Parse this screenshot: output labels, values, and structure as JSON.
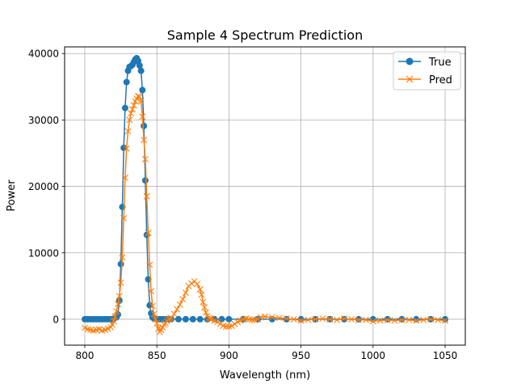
{
  "chart_data": {
    "type": "line",
    "title": "Sample 4 Spectrum Prediction",
    "xlabel": "Wavelength (nm)",
    "ylabel": "Power",
    "xlim": [
      786,
      1064
    ],
    "ylim": [
      -3900,
      41000
    ],
    "xticks": [
      800,
      850,
      900,
      950,
      1000,
      1050
    ],
    "yticks": [
      0,
      10000,
      20000,
      30000,
      40000
    ],
    "grid": true,
    "legend_position": "top-right",
    "series": [
      {
        "name": "True",
        "color": "#1f77b4",
        "marker": "circle",
        "x": [
          800,
          802,
          804,
          806,
          808,
          810,
          812,
          814,
          816,
          818,
          820,
          822,
          823,
          824,
          825,
          826,
          827,
          828,
          829,
          830,
          831,
          832,
          833,
          834,
          835,
          836,
          837,
          838,
          839,
          840,
          841,
          842,
          843,
          844,
          845,
          846,
          847,
          848,
          849,
          850,
          851,
          852,
          854,
          856,
          858,
          860,
          865,
          870,
          875,
          880,
          885,
          890,
          895,
          900,
          910,
          920,
          930,
          940,
          950,
          960,
          970,
          980,
          990,
          1000,
          1010,
          1020,
          1030,
          1040,
          1050
        ],
        "y": [
          0,
          0,
          0,
          0,
          0,
          0,
          0,
          0,
          0,
          0,
          50,
          300,
          700,
          2800,
          8300,
          16900,
          25800,
          31800,
          35700,
          37400,
          38000,
          38100,
          38300,
          38700,
          39100,
          39300,
          38900,
          38200,
          37400,
          34500,
          29100,
          20900,
          12700,
          6000,
          2100,
          900,
          300,
          100,
          50,
          0,
          0,
          0,
          0,
          0,
          0,
          0,
          0,
          0,
          0,
          0,
          0,
          0,
          0,
          0,
          0,
          0,
          0,
          0,
          0,
          0,
          0,
          0,
          0,
          0,
          0,
          0,
          0,
          0,
          0
        ]
      },
      {
        "name": "Pred",
        "color": "#ff7f0e",
        "marker": "x",
        "x": [
          800,
          802,
          804,
          806,
          808,
          810,
          812,
          814,
          816,
          818,
          819,
          820,
          821,
          822,
          823,
          824,
          825,
          826,
          827,
          828,
          829,
          830,
          831,
          832,
          833,
          834,
          835,
          836,
          837,
          838,
          839,
          840,
          841,
          842,
          843,
          844,
          845,
          846,
          847,
          848,
          849,
          850,
          851,
          852,
          853,
          854,
          855,
          856,
          857,
          858,
          859,
          860,
          862,
          864,
          866,
          868,
          870,
          872,
          874,
          876,
          878,
          880,
          881,
          882,
          883,
          884,
          885,
          886,
          887,
          888,
          890,
          892,
          894,
          896,
          898,
          900,
          902,
          904,
          906,
          908,
          910,
          912,
          914,
          916,
          918,
          920,
          922,
          925,
          930,
          935,
          940,
          945,
          950,
          955,
          960,
          965,
          970,
          975,
          980,
          985,
          990,
          995,
          1000,
          1005,
          1010,
          1015,
          1020,
          1025,
          1030,
          1035,
          1040,
          1045,
          1050
        ],
        "y": [
          -1300,
          -1500,
          -1600,
          -1700,
          -1600,
          -1500,
          -1700,
          -1600,
          -1400,
          -1200,
          -800,
          -300,
          400,
          1200,
          2300,
          3500,
          5500,
          9300,
          15200,
          21300,
          25700,
          28300,
          30000,
          31000,
          31600,
          32200,
          32800,
          33200,
          33600,
          33500,
          32800,
          30500,
          27000,
          24100,
          18500,
          13000,
          8200,
          4200,
          2000,
          800,
          0,
          -600,
          -1400,
          -1900,
          -1600,
          -1200,
          -800,
          -600,
          -300,
          0,
          100,
          200,
          800,
          1500,
          2200,
          3000,
          4000,
          5000,
          5400,
          5700,
          5300,
          4500,
          3700,
          2600,
          1800,
          1000,
          500,
          200,
          100,
          0,
          -200,
          -400,
          -700,
          -1000,
          -1100,
          -1100,
          -1000,
          -700,
          -400,
          -200,
          0,
          100,
          0,
          -100,
          -100,
          0,
          300,
          400,
          300,
          200,
          100,
          0,
          -200,
          -100,
          0,
          100,
          0,
          -100,
          100,
          0,
          -100,
          -100,
          -300,
          -200,
          -100,
          -200,
          -100,
          -100,
          -200,
          -100,
          0,
          -100,
          -200
        ]
      }
    ]
  }
}
